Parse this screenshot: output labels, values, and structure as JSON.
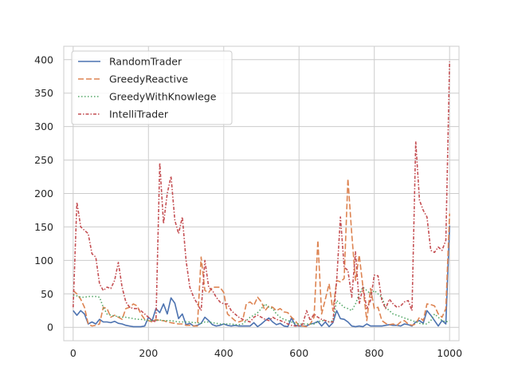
{
  "chart_data": {
    "type": "line",
    "title": "",
    "xlabel": "",
    "ylabel": "",
    "xlim": [
      -25,
      1025
    ],
    "ylim": [
      -20,
      420
    ],
    "xticks": [
      0,
      200,
      400,
      600,
      800,
      1000
    ],
    "yticks": [
      0,
      50,
      100,
      150,
      200,
      250,
      300,
      350,
      400
    ],
    "grid": true,
    "legend_position": "top-left",
    "series": [
      {
        "name": "RandomTrader",
        "color": "#4c72b0",
        "dash": "solid",
        "x": [
          0,
          10,
          20,
          30,
          40,
          50,
          60,
          70,
          80,
          90,
          100,
          110,
          120,
          130,
          140,
          150,
          160,
          170,
          180,
          190,
          200,
          210,
          220,
          230,
          240,
          250,
          260,
          270,
          280,
          290,
          300,
          310,
          320,
          330,
          340,
          350,
          360,
          370,
          380,
          390,
          400,
          410,
          420,
          430,
          440,
          450,
          460,
          470,
          480,
          490,
          500,
          510,
          520,
          530,
          540,
          550,
          560,
          570,
          580,
          590,
          600,
          610,
          620,
          630,
          640,
          650,
          660,
          670,
          680,
          690,
          700,
          710,
          720,
          730,
          740,
          750,
          760,
          770,
          780,
          790,
          800,
          810,
          820,
          830,
          840,
          850,
          860,
          870,
          880,
          890,
          900,
          910,
          920,
          930,
          940,
          950,
          960,
          970,
          980,
          990,
          1000
        ],
        "values": [
          25,
          18,
          25,
          20,
          5,
          8,
          5,
          12,
          8,
          8,
          7,
          9,
          6,
          5,
          3,
          2,
          1,
          1,
          1,
          2,
          15,
          10,
          28,
          22,
          35,
          20,
          44,
          36,
          13,
          20,
          4,
          6,
          2,
          3,
          6,
          15,
          10,
          4,
          2,
          3,
          5,
          3,
          2,
          3,
          2,
          2,
          2,
          2,
          7,
          1,
          5,
          10,
          14,
          8,
          4,
          6,
          2,
          1,
          14,
          3,
          2,
          2,
          2,
          5,
          6,
          9,
          2,
          8,
          1,
          7,
          25,
          13,
          12,
          8,
          2,
          1,
          2,
          1,
          5,
          2,
          2,
          2,
          2,
          3,
          4,
          3,
          3,
          2,
          5,
          4,
          2,
          8,
          10,
          6,
          25,
          18,
          10,
          2,
          10,
          5,
          152
        ]
      },
      {
        "name": "GreedyReactive",
        "color": "#dd8452",
        "dash": "long",
        "x": [
          0,
          10,
          20,
          30,
          40,
          50,
          60,
          70,
          80,
          90,
          100,
          110,
          120,
          130,
          140,
          150,
          160,
          170,
          180,
          190,
          200,
          210,
          220,
          230,
          240,
          250,
          260,
          270,
          280,
          290,
          300,
          310,
          320,
          330,
          340,
          350,
          360,
          370,
          380,
          390,
          400,
          410,
          420,
          430,
          440,
          450,
          460,
          470,
          480,
          490,
          500,
          510,
          520,
          530,
          540,
          550,
          560,
          570,
          580,
          590,
          600,
          610,
          620,
          630,
          640,
          650,
          660,
          670,
          680,
          690,
          700,
          710,
          720,
          730,
          740,
          750,
          760,
          770,
          780,
          790,
          800,
          810,
          820,
          830,
          840,
          850,
          860,
          870,
          880,
          890,
          900,
          910,
          920,
          930,
          940,
          950,
          960,
          970,
          980,
          990,
          1000
        ],
        "values": [
          55,
          50,
          42,
          30,
          5,
          2,
          3,
          5,
          30,
          28,
          15,
          18,
          15,
          12,
          28,
          30,
          35,
          32,
          20,
          12,
          10,
          8,
          12,
          10,
          10,
          8,
          7,
          6,
          5,
          5,
          3,
          3,
          2,
          2,
          105,
          55,
          52,
          60,
          60,
          60,
          52,
          20,
          15,
          10,
          8,
          10,
          35,
          38,
          33,
          45,
          38,
          25,
          32,
          30,
          25,
          28,
          23,
          22,
          15,
          10,
          2,
          2,
          1,
          5,
          15,
          130,
          20,
          42,
          65,
          25,
          70,
          68,
          73,
          222,
          140,
          70,
          108,
          60,
          10,
          58,
          28,
          30,
          10,
          6,
          4,
          5,
          3,
          8,
          10,
          5,
          3,
          5,
          15,
          10,
          35,
          34,
          32,
          20,
          15,
          28,
          170
        ]
      },
      {
        "name": "GreedyWithKnowlege",
        "color": "#55a868",
        "dash": "dotted",
        "x": [
          0,
          10,
          20,
          30,
          40,
          50,
          60,
          70,
          80,
          90,
          100,
          110,
          120,
          130,
          140,
          150,
          160,
          170,
          180,
          190,
          200,
          210,
          220,
          230,
          240,
          250,
          260,
          270,
          280,
          290,
          300,
          310,
          320,
          330,
          340,
          350,
          360,
          370,
          380,
          390,
          400,
          410,
          420,
          430,
          440,
          450,
          460,
          470,
          480,
          490,
          500,
          510,
          520,
          530,
          540,
          550,
          560,
          570,
          580,
          590,
          600,
          610,
          620,
          630,
          640,
          650,
          660,
          670,
          680,
          690,
          700,
          710,
          720,
          730,
          740,
          750,
          760,
          770,
          780,
          790,
          800,
          810,
          820,
          830,
          840,
          850,
          860,
          870,
          880,
          890,
          900,
          910,
          920,
          930,
          940,
          950,
          960,
          970,
          980,
          990,
          1000
        ],
        "values": [
          48,
          47,
          45,
          45,
          46,
          46,
          46,
          45,
          30,
          20,
          18,
          17,
          16,
          15,
          15,
          14,
          13,
          12,
          12,
          11,
          10,
          10,
          10,
          11,
          10,
          10,
          10,
          9,
          8,
          8,
          8,
          8,
          7,
          7,
          6,
          8,
          8,
          7,
          6,
          5,
          5,
          5,
          5,
          4,
          4,
          5,
          10,
          15,
          18,
          22,
          28,
          35,
          30,
          28,
          20,
          15,
          12,
          10,
          8,
          6,
          5,
          5,
          5,
          5,
          5,
          8,
          10,
          10,
          8,
          10,
          40,
          35,
          30,
          28,
          25,
          35,
          50,
          60,
          55,
          50,
          55,
          50,
          45,
          30,
          25,
          20,
          18,
          16,
          14,
          12,
          10,
          8,
          6,
          5,
          5,
          10,
          20,
          15,
          10,
          8,
          10
        ]
      },
      {
        "name": "IntelliTrader",
        "color": "#c44e52",
        "dash": "dashdot",
        "x": [
          0,
          10,
          20,
          30,
          40,
          50,
          60,
          70,
          80,
          90,
          100,
          110,
          120,
          130,
          140,
          150,
          160,
          170,
          180,
          190,
          200,
          210,
          220,
          230,
          240,
          250,
          260,
          270,
          280,
          290,
          300,
          310,
          320,
          330,
          340,
          350,
          360,
          370,
          380,
          390,
          400,
          410,
          420,
          430,
          440,
          450,
          460,
          470,
          480,
          490,
          500,
          510,
          520,
          530,
          540,
          550,
          560,
          570,
          580,
          590,
          600,
          610,
          620,
          630,
          640,
          650,
          660,
          670,
          680,
          690,
          700,
          710,
          720,
          730,
          740,
          750,
          760,
          770,
          780,
          790,
          800,
          810,
          820,
          830,
          840,
          850,
          860,
          870,
          880,
          890,
          900,
          910,
          920,
          930,
          940,
          950,
          960,
          970,
          980,
          990,
          1000
        ],
        "values": [
          30,
          187,
          150,
          145,
          140,
          110,
          105,
          65,
          55,
          60,
          58,
          70,
          97,
          60,
          38,
          30,
          28,
          28,
          25,
          20,
          15,
          10,
          8,
          246,
          155,
          200,
          226,
          160,
          140,
          165,
          100,
          60,
          45,
          35,
          25,
          100,
          60,
          55,
          45,
          38,
          35,
          35,
          25,
          20,
          15,
          12,
          10,
          8,
          15,
          18,
          15,
          12,
          10,
          15,
          12,
          10,
          8,
          5,
          3,
          2,
          2,
          5,
          25,
          10,
          20,
          15,
          12,
          10,
          8,
          8,
          70,
          165,
          90,
          85,
          45,
          113,
          35,
          60,
          28,
          40,
          78,
          77,
          40,
          28,
          42,
          35,
          30,
          32,
          38,
          40,
          25,
          278,
          190,
          175,
          165,
          115,
          112,
          120,
          115,
          130,
          397
        ]
      }
    ]
  }
}
